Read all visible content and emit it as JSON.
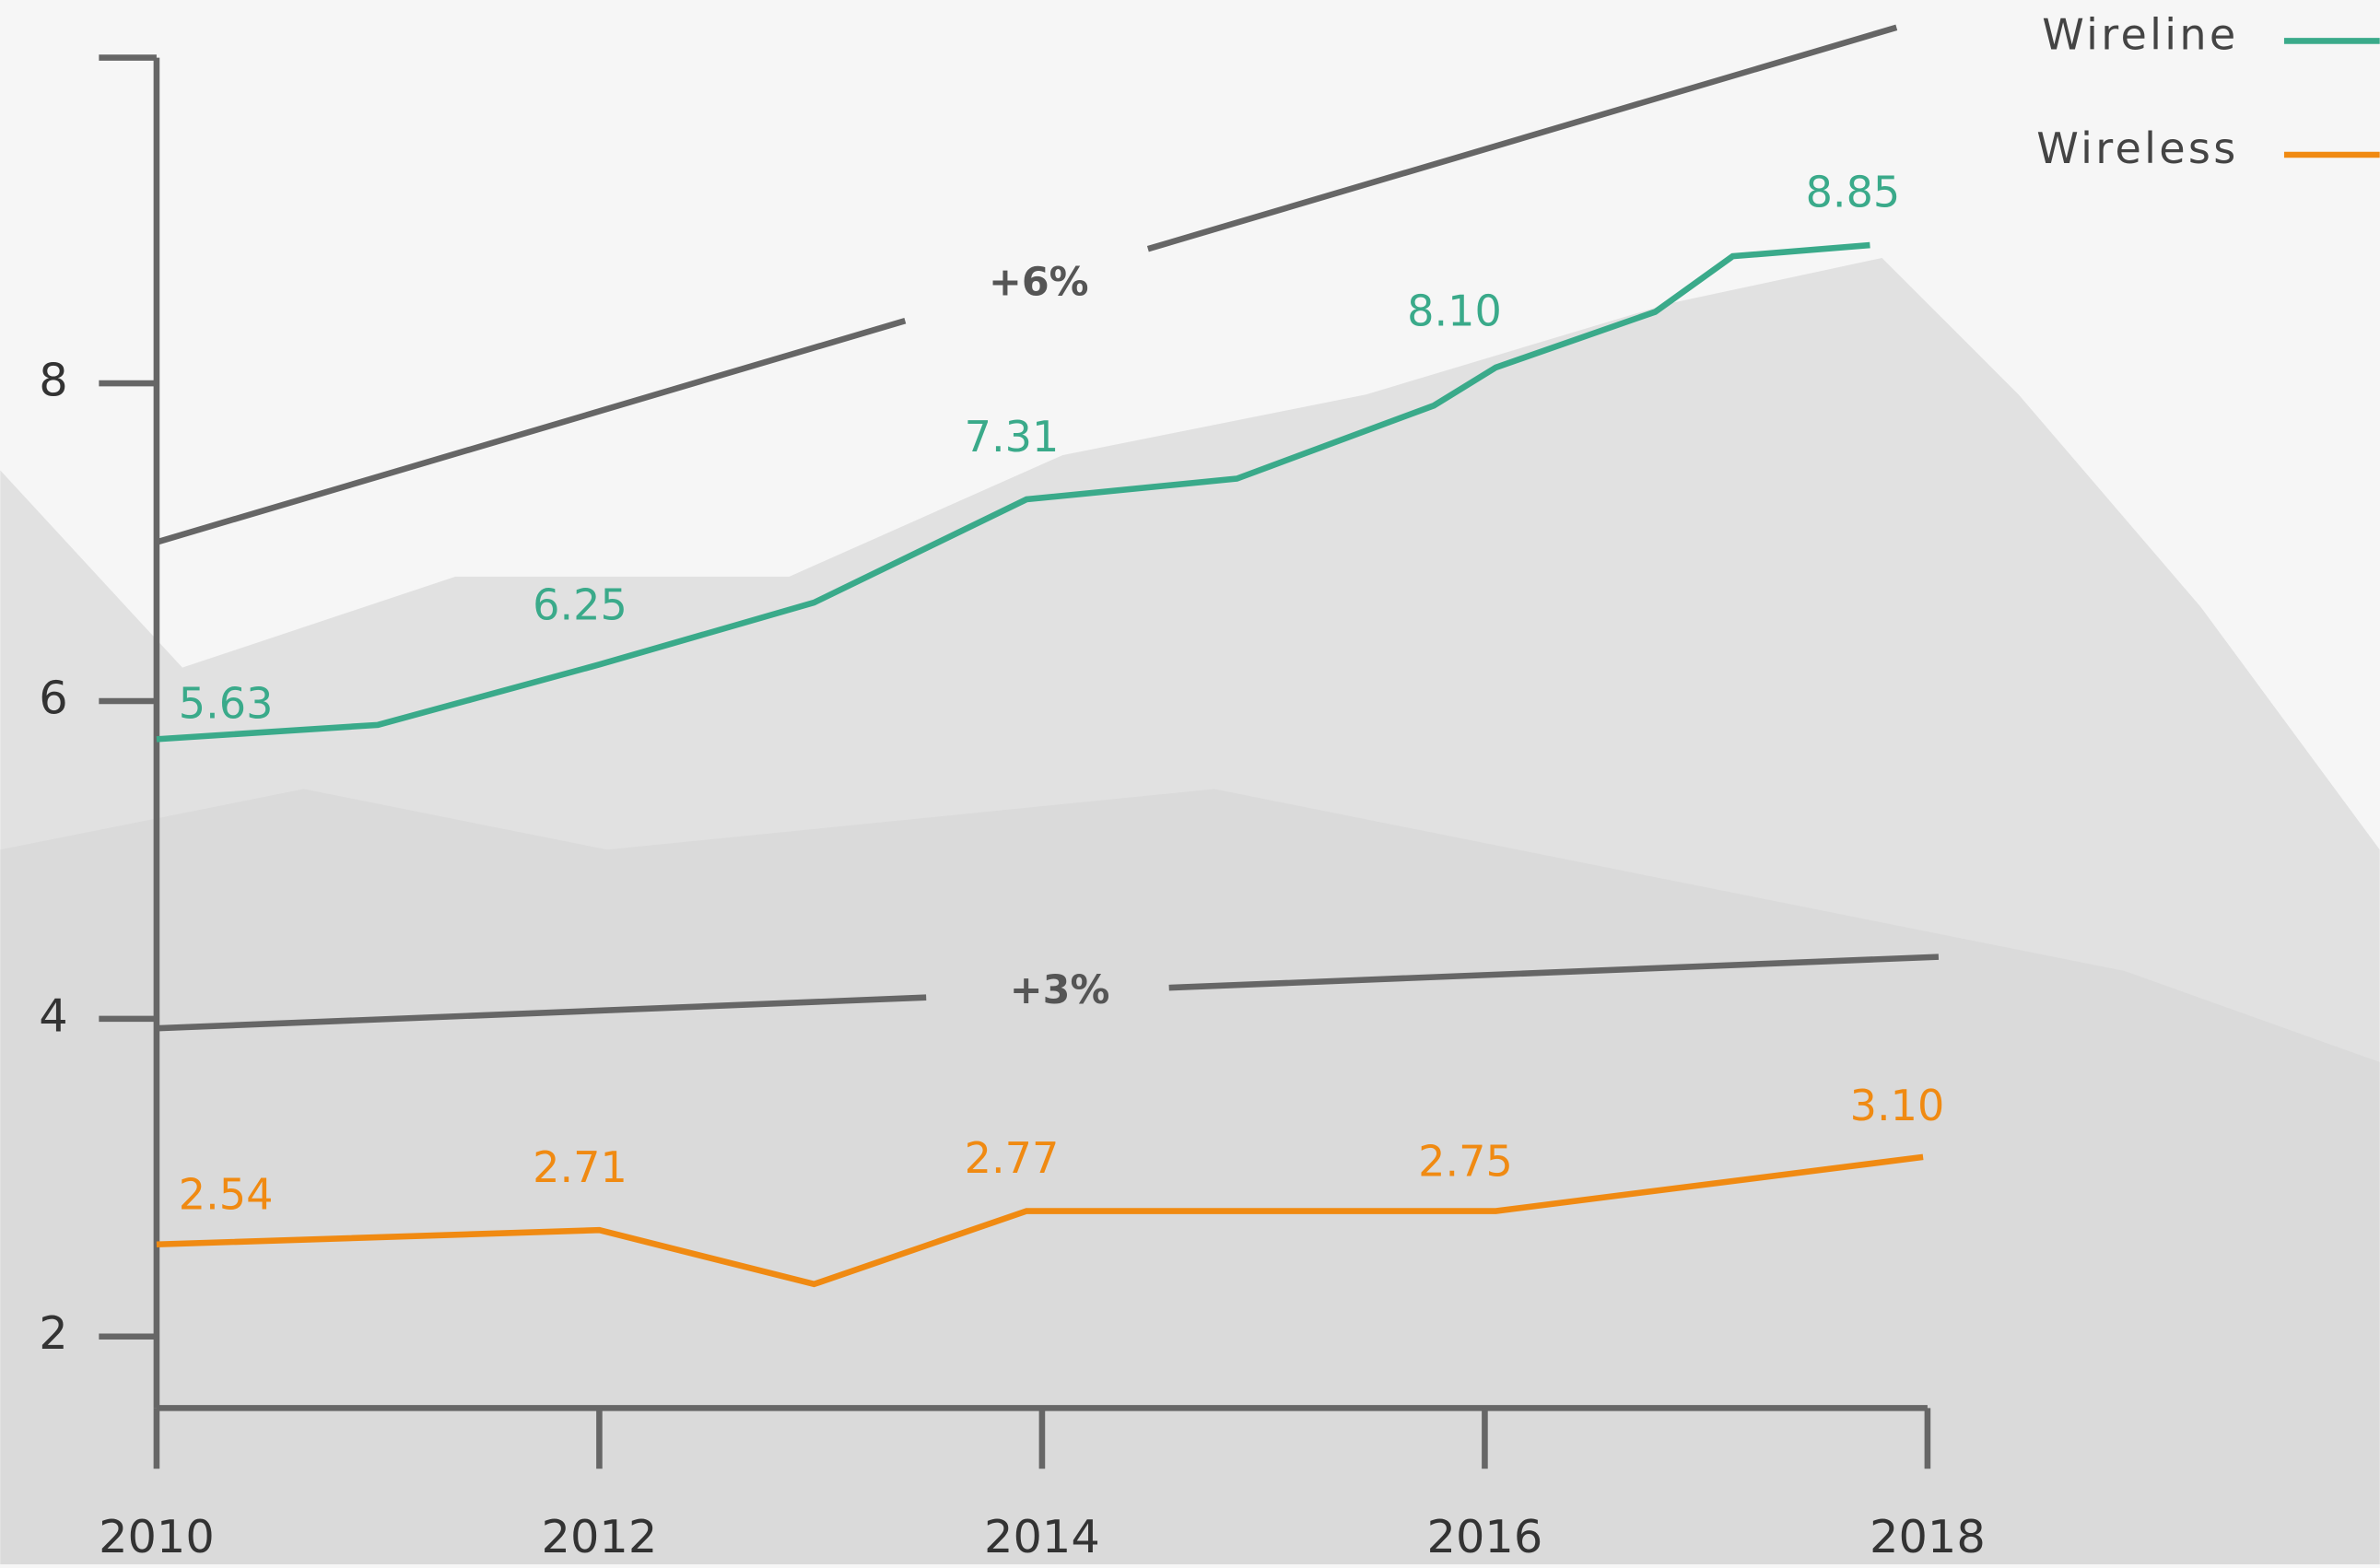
{
  "chart_data": {
    "type": "line",
    "xlim": [
      2010,
      2018
    ],
    "xticks": [
      2010,
      2012,
      2014,
      2016,
      2018
    ],
    "ylim": [
      1.55,
      10.05
    ],
    "yticks": [
      2,
      4,
      6,
      8
    ],
    "series": [
      {
        "name": "Wireline",
        "color": "#3aaa8a",
        "x": [
          2010,
          2011,
          2012,
          2012.97,
          2013.93,
          2014.88,
          2015.77,
          2016.05,
          2016.77,
          2017.12,
          2017.74
        ],
        "values": [
          5.76,
          5.85,
          6.23,
          6.62,
          7.27,
          7.4,
          7.86,
          8.1,
          8.45,
          8.8,
          8.87
        ],
        "data_labels": [
          {
            "x": 2010.45,
            "value": 5.63,
            "label": "5.63"
          },
          {
            "x": 2012.05,
            "value": 6.25,
            "label": "6.25"
          },
          {
            "x": 2014,
            "value": 7.31,
            "label": "7.31"
          },
          {
            "x": 2016,
            "value": 8.1,
            "label": "8.10"
          },
          {
            "x": 2017.8,
            "value": 8.85,
            "label": "8.85"
          }
        ]
      },
      {
        "name": "Wireless",
        "color": "#f08a12",
        "x": [
          2010,
          2012,
          2012.97,
          2013.93,
          2016.05,
          2017.98
        ],
        "values": [
          2.58,
          2.67,
          2.33,
          2.79,
          2.79,
          3.13
        ],
        "data_labels": [
          {
            "x": 2010.45,
            "value": 2.54,
            "label": "2.54"
          },
          {
            "x": 2012.05,
            "value": 2.71,
            "label": "2.71"
          },
          {
            "x": 2014,
            "value": 2.77,
            "label": "2.77"
          },
          {
            "x": 2016.05,
            "value": 2.75,
            "label": "2.75"
          },
          {
            "x": 2018,
            "value": 3.1,
            "label": "3.10"
          }
        ]
      }
    ],
    "trend_lines": [
      {
        "text": "+6%",
        "x": [
          2010,
          2017.86
        ],
        "y": [
          7.0,
          10.24
        ]
      },
      {
        "text": "+3%",
        "x": [
          2010,
          2018.05
        ],
        "y": [
          3.94,
          4.39
        ]
      }
    ]
  }
}
